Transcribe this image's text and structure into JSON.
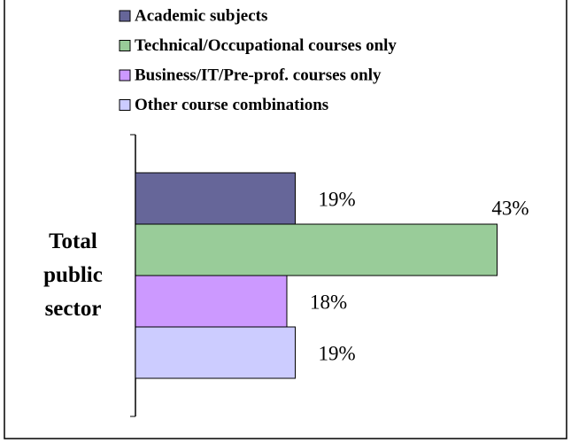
{
  "chart_data": {
    "type": "bar",
    "orientation": "horizontal",
    "categories": [
      "Total public sector"
    ],
    "series": [
      {
        "name": "Academic subjects",
        "color": "#666699",
        "values": [
          19
        ],
        "value_labels": [
          "19%"
        ]
      },
      {
        "name": "Technical/Occupational courses only",
        "color": "#99cc99",
        "values": [
          43
        ],
        "value_labels": [
          "43%"
        ]
      },
      {
        "name": "Business/IT/Pre-prof. courses only",
        "color": "#cc99ff",
        "values": [
          18
        ],
        "value_labels": [
          "18%"
        ]
      },
      {
        "name": "Other course combinations",
        "color": "#ccccff",
        "values": [
          19
        ],
        "value_labels": [
          "19%"
        ]
      }
    ],
    "xlim": [
      0,
      50
    ],
    "legend": "top"
  }
}
